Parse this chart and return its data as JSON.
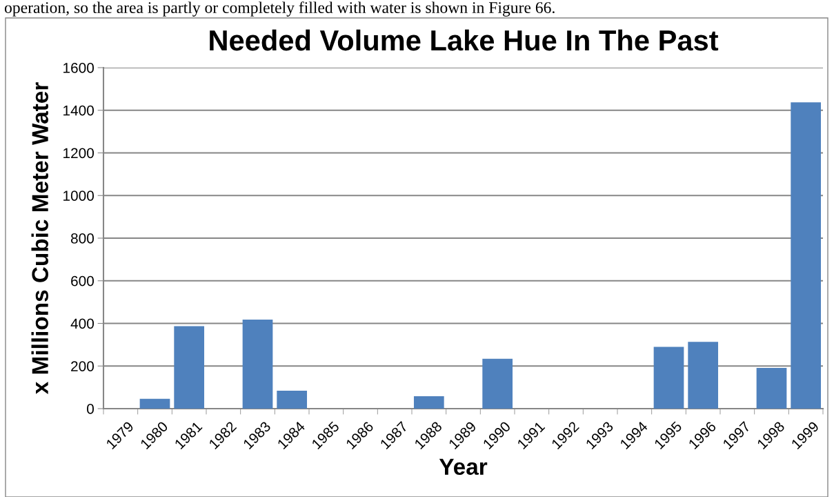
{
  "chart_data": {
    "type": "bar",
    "title": "Needed Volume Lake Hue In The Past",
    "xlabel": "Year",
    "ylabel": "x Millions Cubic Meter Water",
    "annotations": [
      "operation, so the area is partly or completely filled with water is shown in Figure 66."
    ],
    "categories": [
      "1979",
      "1980",
      "1981",
      "1982",
      "1983",
      "1984",
      "1985",
      "1986",
      "1987",
      "1988",
      "1989",
      "1990",
      "1991",
      "1992",
      "1993",
      "1994",
      "1995",
      "1996",
      "1997",
      "1998",
      "1999"
    ],
    "values": [
      0,
      46,
      387,
      0,
      418,
      84,
      0,
      0,
      0,
      58,
      0,
      234,
      0,
      0,
      0,
      0,
      290,
      313,
      0,
      191,
      1437
    ],
    "color": "#4f81bd",
    "ylim": [
      0,
      1600
    ],
    "yticks": [
      0,
      200,
      400,
      600,
      800,
      1000,
      1200,
      1400,
      1600
    ],
    "grid": "y"
  }
}
